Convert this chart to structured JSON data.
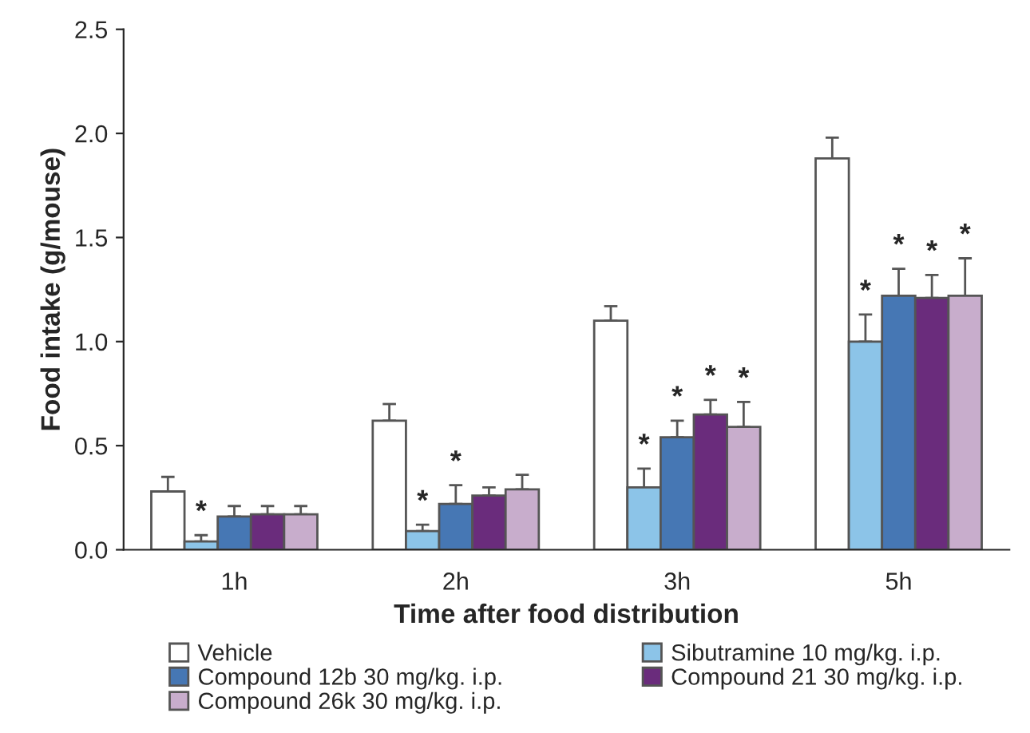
{
  "chart_data": {
    "type": "bar",
    "xlabel": "Time after food distribution",
    "ylabel": "Food intake (g/mouse)",
    "categories": [
      "1h",
      "2h",
      "3h",
      "5h"
    ],
    "ylim": [
      0,
      2.5
    ],
    "yticks": [
      {
        "value": 0,
        "label": "0.0"
      },
      0.5,
      {
        "value": 1,
        "label": "1.0"
      },
      1.5,
      {
        "value": 2,
        "label": "2.0"
      },
      2.5
    ],
    "grid": false,
    "legend": "bottom",
    "series": [
      {
        "name": "Vehicle",
        "color": "#ffffff",
        "values": [
          0.28,
          0.62,
          1.1,
          1.88
        ],
        "errors": [
          [
            0.28,
            0.35
          ],
          [
            0.62,
            0.7
          ],
          [
            1.1,
            1.17
          ],
          [
            1.88,
            1.98
          ]
        ],
        "value_labels": [
          null,
          null,
          null,
          null
        ]
      },
      {
        "name": "Sibutramine 10 mg/kg. i.p.",
        "color": "#8cc4e8",
        "values": [
          0.04,
          0.09,
          0.3,
          1.0
        ],
        "errors": [
          [
            0.04,
            0.07
          ],
          [
            0.09,
            0.12
          ],
          [
            0.3,
            0.39
          ],
          [
            1.0,
            1.13
          ]
        ],
        "value_labels": [
          "*",
          "*",
          "*",
          "*"
        ]
      },
      {
        "name": "Compound 12b 30 mg/kg. i.p.",
        "color": "#4677b4",
        "values": [
          0.16,
          0.22,
          0.54,
          1.22
        ],
        "errors": [
          [
            0.16,
            0.21
          ],
          [
            0.22,
            0.31
          ],
          [
            0.54,
            0.62
          ],
          [
            1.22,
            1.35
          ]
        ],
        "value_labels": [
          null,
          "*",
          "*",
          "*"
        ]
      },
      {
        "name": "Compound 21 30 mg/kg. i.p.",
        "color": "#6a2c7c",
        "values": [
          0.17,
          0.26,
          0.65,
          1.21
        ],
        "errors": [
          [
            0.17,
            0.21
          ],
          [
            0.26,
            0.3
          ],
          [
            0.65,
            0.72
          ],
          [
            1.21,
            1.32
          ]
        ],
        "value_labels": [
          null,
          null,
          "*",
          "*"
        ]
      },
      {
        "name": "Compound 26k 30 mg/kg. i.p.",
        "color": "#c8adcc",
        "values": [
          0.17,
          0.29,
          0.59,
          1.22
        ],
        "errors": [
          [
            0.17,
            0.21
          ],
          [
            0.29,
            0.36
          ],
          [
            0.59,
            0.71
          ],
          [
            1.22,
            1.4
          ]
        ],
        "value_labels": [
          null,
          null,
          "*",
          "*"
        ]
      }
    ]
  }
}
